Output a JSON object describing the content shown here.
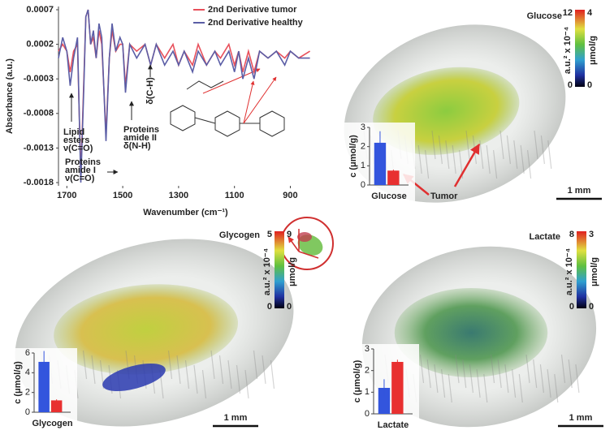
{
  "chart_data": [
    {
      "type": "line",
      "xlabel": "Wavenumber (cm⁻¹)",
      "ylabel": "Absorbance (a.u.)",
      "xlim": [
        1730,
        820
      ],
      "xticks": [
        1700,
        1500,
        1300,
        1100,
        900
      ],
      "ylim": [
        -0.0018,
        0.0007
      ],
      "yticks": [
        0.0007,
        0.0002,
        -0.0003,
        -0.0008,
        -0.0013,
        -0.0018
      ],
      "legend": "top-right",
      "x": [
        1730,
        1715,
        1700,
        1688,
        1676,
        1662,
        1650,
        1640,
        1632,
        1624,
        1615,
        1605,
        1595,
        1585,
        1575,
        1560,
        1548,
        1538,
        1525,
        1510,
        1500,
        1490,
        1475,
        1450,
        1420,
        1400,
        1380,
        1350,
        1320,
        1300,
        1280,
        1250,
        1230,
        1200,
        1170,
        1150,
        1120,
        1100,
        1085,
        1070,
        1050,
        1030,
        1010,
        980,
        950,
        920,
        900,
        870,
        830
      ],
      "series": [
        {
          "name": "2nd Derivative tumor",
          "color": "#e8505b",
          "values": [
            0.0001,
            0.0002,
            0.0001,
            -0.0002,
            0.0001,
            0.0002,
            -0.0017,
            -0.0004,
            0.0006,
            0.0007,
            0.0002,
            0.0003,
            0.0,
            0.0004,
            0.0002,
            -0.0011,
            0.0,
            0.0004,
            0.0001,
            0.0002,
            0.0002,
            -0.0004,
            0.0002,
            0.0001,
            0.0002,
            -0.0001,
            0.0002,
            0.0,
            0.0002,
            -0.0001,
            0.0001,
            -0.0001,
            0.0002,
            -0.0001,
            0.0001,
            0.0,
            0.0002,
            -0.0001,
            0.0001,
            -0.0002,
            0.0001,
            -0.0002,
            0.0001,
            0.0,
            0.0001,
            0.0,
            0.0001,
            0.0,
            0.0001
          ]
        },
        {
          "name": "2nd Derivative healthy",
          "color": "#5b5ea6",
          "values": [
            0.0,
            0.0003,
            0.0001,
            -0.0004,
            0.0,
            0.0003,
            -0.0018,
            -0.0005,
            0.0006,
            0.0007,
            0.0002,
            0.0004,
            0.0,
            0.0005,
            0.0003,
            -0.0012,
            0.0,
            0.0005,
            0.0001,
            0.0003,
            0.0002,
            -0.0005,
            0.0002,
            0.0,
            0.0002,
            -0.0001,
            0.0002,
            -0.0001,
            0.0001,
            -0.0001,
            0.0001,
            -0.0002,
            0.0001,
            -0.0001,
            0.0001,
            -0.0001,
            0.0001,
            -0.0002,
            0.0001,
            -0.0003,
            0.0,
            -0.0003,
            0.0001,
            0.0,
            0.0001,
            -0.0001,
            0.0001,
            0.0,
            0.0
          ]
        }
      ],
      "annotations": [
        {
          "lines": [
            "Lipid",
            "esters",
            "ν(C=O)"
          ]
        },
        {
          "lines": [
            "Proteins",
            "amide I",
            "ν(C=O)"
          ]
        },
        {
          "lines": [
            "Proteins",
            "amide II",
            "δ(N-H)"
          ]
        },
        {
          "lines": [
            "δ(C-H)"
          ]
        }
      ]
    },
    {
      "type": "bar",
      "ylabel": "c (μmol/g)",
      "xlabel": "Glucose",
      "ylim": [
        0,
        3
      ],
      "yticks": [
        0,
        1,
        2,
        3
      ],
      "values": [
        2.2,
        0.75
      ],
      "errors": [
        0.6,
        0.05
      ],
      "colors": [
        "#3355dd",
        "#e83030"
      ]
    },
    {
      "type": "bar",
      "ylabel": "c (μmol/g)",
      "xlabel": "Glycogen",
      "ylim": [
        0,
        6
      ],
      "yticks": [
        0,
        2,
        4,
        6
      ],
      "values": [
        5.1,
        1.2
      ],
      "errors": [
        1.1,
        0.1
      ],
      "colors": [
        "#3355dd",
        "#e83030"
      ]
    },
    {
      "type": "bar",
      "ylabel": "c (μmol/g)",
      "xlabel": "Lactate",
      "ylim": [
        0,
        3
      ],
      "yticks": [
        0,
        1,
        2,
        3
      ],
      "values": [
        1.2,
        2.4
      ],
      "errors": [
        0.4,
        0.1
      ],
      "colors": [
        "#3355dd",
        "#e83030"
      ]
    }
  ],
  "panels": [
    {
      "title": "Glucose",
      "cbar_left": [
        12,
        0
      ],
      "cbar_right": [
        4,
        0
      ],
      "cbar_unit_left": "a.u.² x 10⁻⁴",
      "cbar_unit_right": "μmol/g",
      "scale_bar": "1 mm",
      "annotation": "Tumor"
    },
    {
      "title": "Glycogen",
      "cbar_left": [
        5,
        0
      ],
      "cbar_right": [
        9,
        0
      ],
      "cbar_unit_left": "a.u.² x 10⁻⁴",
      "cbar_unit_right": "μmol/g",
      "scale_bar": "1 mm"
    },
    {
      "title": "Lactate",
      "cbar_left": [
        8,
        0
      ],
      "cbar_right": [
        3,
        0
      ],
      "cbar_unit_left": "a.u.² x 10⁻⁴",
      "cbar_unit_right": "μmol/g",
      "scale_bar": "1 mm"
    }
  ]
}
